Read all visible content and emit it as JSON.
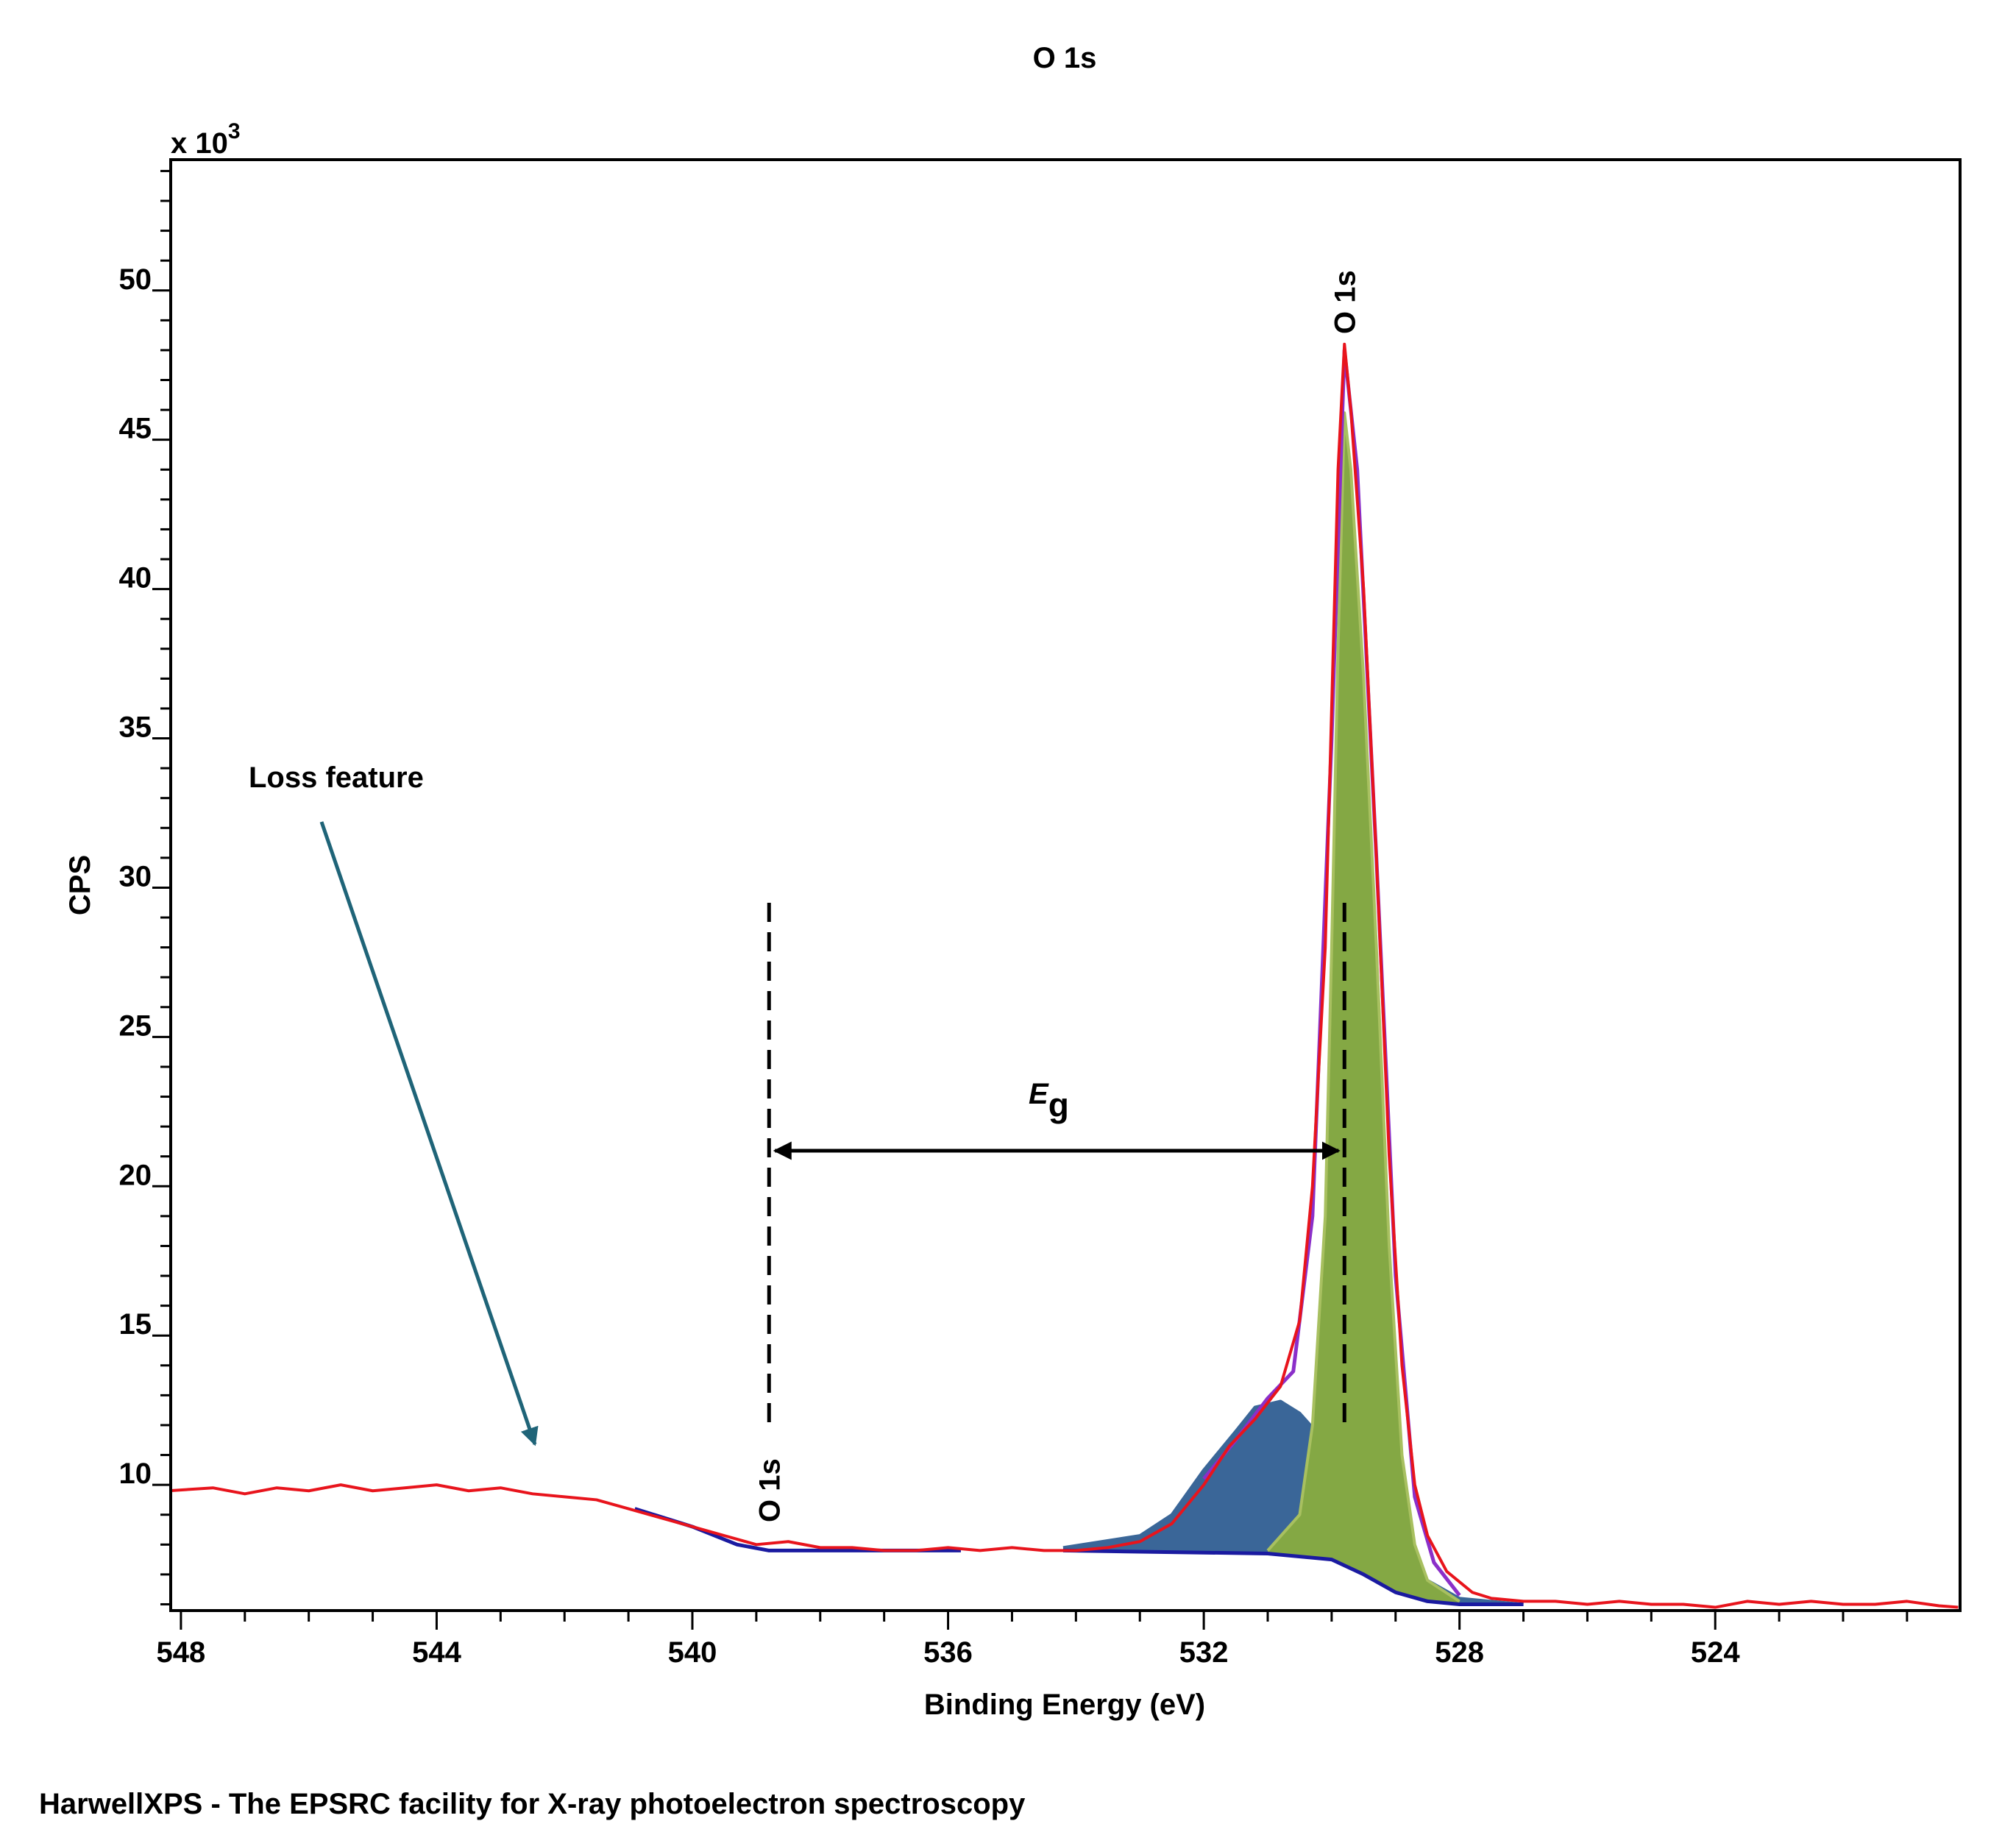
{
  "chart_data": {
    "type": "line",
    "title": "O 1s",
    "xlabel": "Binding Energy (eV)",
    "ylabel": "CPS",
    "y_multiplier": "x 10",
    "y_multiplier_exp": "3",
    "xlim": [
      548.16,
      520.17
    ],
    "ylim": [
      5.79,
      54.38
    ],
    "xticks": [
      548,
      544,
      540,
      536,
      532,
      528,
      524
    ],
    "yticks": [
      10,
      15,
      20,
      25,
      30,
      35,
      40,
      45,
      50
    ],
    "xminorticks": [
      547,
      546,
      545,
      543,
      542,
      541,
      539,
      538,
      537,
      535,
      534,
      533,
      531,
      530,
      529,
      527,
      526,
      525,
      523,
      522,
      521
    ],
    "yminorticks": [
      6,
      7,
      8,
      9,
      11,
      12,
      13,
      14,
      16,
      17,
      18,
      19,
      21,
      22,
      23,
      24,
      26,
      27,
      28,
      29,
      31,
      32,
      33,
      34,
      36,
      37,
      38,
      39,
      41,
      42,
      43,
      44,
      46,
      47,
      48,
      49,
      51,
      52,
      53,
      54
    ],
    "color": "#e8141c",
    "x": [
      548.2,
      547.5,
      547,
      546.5,
      546,
      545.5,
      545,
      544.5,
      544,
      543.5,
      543,
      542.5,
      542,
      541.5,
      541,
      540.5,
      540,
      539.5,
      539,
      538.5,
      538,
      537.5,
      537,
      536.5,
      536,
      535.5,
      535,
      534.5,
      534,
      533.5,
      533,
      532.5,
      532,
      531.6,
      531.2,
      530.8,
      530.5,
      530.3,
      530.1,
      530.0,
      529.9,
      529.8,
      529.7,
      529.5,
      529.3,
      529.1,
      528.9,
      528.7,
      528.5,
      528.2,
      527.8,
      527.5,
      527,
      526.5,
      526,
      525.5,
      525,
      524.5,
      524,
      523.5,
      523,
      522.5,
      522,
      521.5,
      521,
      520.5,
      520.2
    ],
    "values": [
      9.8,
      9.9,
      9.7,
      9.9,
      9.8,
      10.0,
      9.8,
      9.9,
      10.0,
      9.8,
      9.9,
      9.7,
      9.6,
      9.5,
      9.2,
      8.9,
      8.6,
      8.3,
      8.0,
      8.1,
      7.9,
      7.9,
      7.8,
      7.8,
      7.9,
      7.8,
      7.9,
      7.8,
      7.8,
      7.9,
      8.1,
      8.7,
      10.0,
      11.3,
      12.2,
      13.3,
      15.5,
      20,
      28,
      36,
      44,
      48.2,
      46,
      40,
      31,
      21,
      14,
      10,
      8.3,
      7.1,
      6.4,
      6.2,
      6.1,
      6.1,
      6.0,
      6.1,
      6.0,
      6.0,
      5.9,
      6.1,
      6.0,
      6.1,
      6.0,
      6.0,
      6.1,
      5.95,
      5.9
    ],
    "envelope": {
      "color": "#8b2fc9",
      "x": [
        532,
        531.5,
        531,
        530.6,
        530.3,
        530,
        529.8,
        529.6,
        529.3,
        529,
        528.7,
        528.4,
        528
      ],
      "values": [
        10.2,
        11.5,
        12.9,
        13.8,
        19,
        35,
        48,
        44,
        31,
        17,
        9.6,
        7.4,
        6.3
      ]
    },
    "background": {
      "color": "#1a1aa0",
      "x": [
        540.9,
        540,
        539.3,
        538.8,
        535.8,
        535,
        534.2,
        531,
        530,
        529.5,
        529,
        528.5,
        528,
        527
      ],
      "values": [
        9.2,
        8.6,
        8.0,
        7.8,
        7.8,
        null,
        7.8,
        7.7,
        7.5,
        7.0,
        6.4,
        6.1,
        6.0,
        6.0
      ]
    },
    "components": [
      {
        "color": "#3a6698",
        "outline": "#3a6698",
        "x": [
          534.2,
          533,
          532.5,
          532,
          531.5,
          531.2,
          530.8,
          530.5,
          530,
          529.5,
          529,
          528.5,
          528,
          527
        ],
        "values": [
          7.9,
          8.3,
          9.0,
          10.5,
          11.8,
          12.6,
          12.8,
          12.4,
          11.2,
          9.6,
          8.0,
          6.8,
          6.2,
          6.0
        ]
      },
      {
        "color": "#84a844",
        "outline": "#a8c060",
        "x": [
          531,
          530.5,
          530.3,
          530.1,
          530.0,
          529.9,
          529.8,
          529.7,
          529.5,
          529.3,
          529.1,
          528.9,
          528.7,
          528.5,
          528
        ],
        "values": [
          7.8,
          9.0,
          12,
          19,
          28,
          38,
          45.9,
          44,
          37,
          28,
          18,
          11,
          8,
          6.8,
          6.1
        ]
      }
    ],
    "markers": [
      {
        "x": 538.8,
        "label": "O 1s"
      },
      {
        "x": 529.8,
        "label": "O 1s"
      }
    ],
    "annotations": {
      "loss_feature": "Loss feature",
      "gap_symbol": "E",
      "gap_subscript": "g"
    }
  },
  "footer": "HarwellXPS - The EPSRC facility for X-ray photoelectron spectroscopy"
}
